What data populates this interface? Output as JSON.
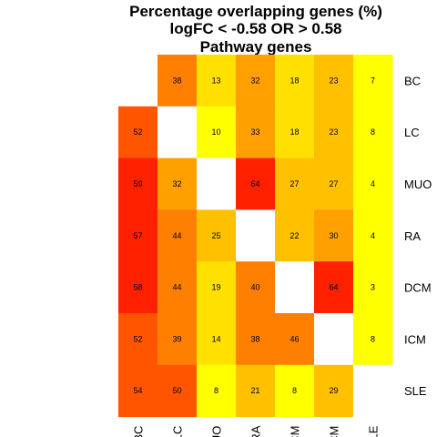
{
  "chart_data": {
    "type": "heatmap",
    "title": [
      "Percentage overlapping genes (%)",
      "logFC < -0.58 OR > 0.58",
      "Pathway genes"
    ],
    "columns": [
      "BC",
      "LC",
      "MUO",
      "RA",
      "DCM",
      "ICM",
      "SLE"
    ],
    "rows": [
      "BC",
      "LC",
      "MUO",
      "RA",
      "DCM",
      "ICM",
      "SLE"
    ],
    "values": [
      [
        null,
        38,
        13,
        32,
        18,
        23,
        7
      ],
      [
        52,
        null,
        10,
        33,
        18,
        23,
        8
      ],
      [
        59,
        32,
        null,
        64,
        27,
        27,
        4
      ],
      [
        57,
        44,
        25,
        null,
        22,
        30,
        4
      ],
      [
        58,
        44,
        19,
        40,
        null,
        64,
        3
      ],
      [
        52,
        39,
        14,
        38,
        46,
        null,
        8
      ],
      [
        54,
        50,
        8,
        21,
        8,
        29,
        null
      ]
    ],
    "value_labels": [
      [
        "",
        "38",
        "13",
        "32",
        "18",
        "23",
        "7"
      ],
      [
        "52",
        "",
        "10",
        "33",
        "18",
        "23",
        "8"
      ],
      [
        "59",
        "32",
        "",
        "64",
        "27",
        "27",
        "4"
      ],
      [
        "57",
        "44",
        "25",
        "",
        "22",
        "30",
        "4"
      ],
      [
        "58",
        "44",
        "19",
        "40",
        "",
        "64",
        "3"
      ],
      [
        "52",
        "39",
        "14",
        "38",
        "46",
        "",
        "8"
      ],
      [
        "54",
        "50",
        "8",
        "21",
        "8",
        "29",
        ""
      ]
    ],
    "color_scale": [
      "#FFFF00",
      "#FFE000",
      "#FFC000",
      "#FFA000",
      "#FF8000",
      "#FF5500",
      "#FF2000"
    ],
    "color_range": [
      3,
      64
    ],
    "legend": false
  }
}
